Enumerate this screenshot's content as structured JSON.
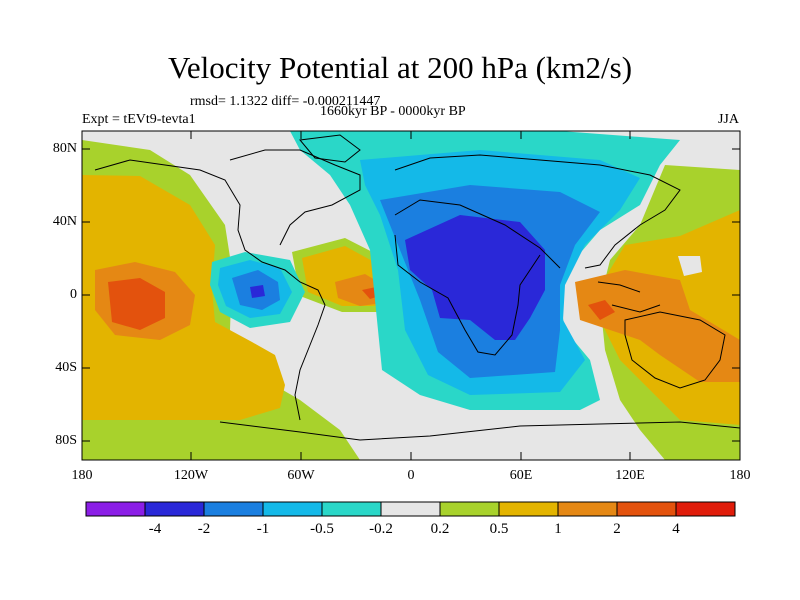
{
  "title": "Velocity Potential at 200 hPa (km2/s)",
  "stats": "rmsd= 1.1322 diff= -0.000211447",
  "experiment": "Expt = tEVt9-tevta1",
  "period": "1660kyr BP - 0000kyr BP",
  "season": "JJA",
  "axes": {
    "y_ticks": [
      "80N",
      "40N",
      "0",
      "40S",
      "80S"
    ],
    "x_ticks": [
      "180",
      "120W",
      "60W",
      "0",
      "60E",
      "120E",
      "180"
    ]
  },
  "colorbar": {
    "labels": [
      "-4",
      "-2",
      "-1",
      "-0.5",
      "-0.2",
      "0.2",
      "0.5",
      "1",
      "2",
      "4"
    ],
    "colors": [
      "#8b1ee6",
      "#2a28d8",
      "#1b7fe0",
      "#14b9e8",
      "#2ad7c8",
      "#e6e6e6",
      "#a8d22c",
      "#e3b400",
      "#e58814",
      "#e3520d",
      "#e01c0a"
    ]
  }
}
